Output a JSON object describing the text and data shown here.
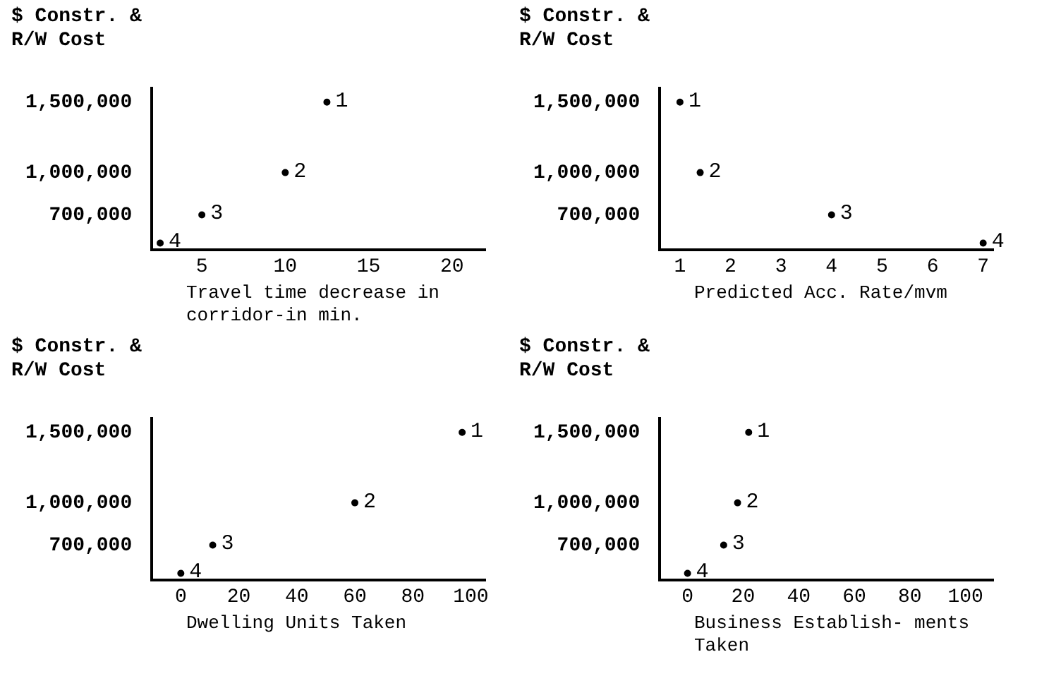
{
  "chart_data": [
    {
      "type": "scatter",
      "ylabel": "$ Constr. & R/W Cost",
      "xlabel": "Travel time decrease in corridor-in min.",
      "x": [
        12.5,
        10,
        5,
        2.5
      ],
      "values": [
        1500000,
        1000000,
        700000,
        500000
      ],
      "color": "#000000",
      "marker": "circle",
      "xlim": [
        2,
        22
      ],
      "xticks": [
        5,
        10,
        15,
        20
      ],
      "ylim": [
        450000,
        1600000
      ],
      "yticks": [
        {
          "value": 700000,
          "label": "700,000"
        },
        {
          "value": 1000000,
          "label": "1,000,000"
        },
        {
          "value": 1500000,
          "label": "1,500,000"
        }
      ],
      "grid": false,
      "legend": false,
      "annotations": [
        {
          "text": "1",
          "x": 12.5,
          "y": 1500000
        },
        {
          "text": "2",
          "x": 10,
          "y": 1000000
        },
        {
          "text": "3",
          "x": 5,
          "y": 700000
        },
        {
          "text": "4",
          "x": 2.5,
          "y": 500000
        }
      ]
    },
    {
      "type": "scatter",
      "ylabel": "$ Constr. & R/W Cost",
      "xlabel": "Predicted Acc. Rate/mvm",
      "x": [
        1,
        1.4,
        4,
        7
      ],
      "values": [
        1500000,
        1000000,
        700000,
        500000
      ],
      "color": "#000000",
      "marker": "circle",
      "xlim": [
        0.6,
        7.2
      ],
      "xticks": [
        1,
        2,
        3,
        4,
        5,
        6,
        7
      ],
      "ylim": [
        450000,
        1600000
      ],
      "yticks": [
        {
          "value": 700000,
          "label": "700,000"
        },
        {
          "value": 1000000,
          "label": "1,000,000"
        },
        {
          "value": 1500000,
          "label": "1,500,000"
        }
      ],
      "grid": false,
      "legend": false,
      "annotations": [
        {
          "text": "1",
          "x": 1,
          "y": 1500000
        },
        {
          "text": "2",
          "x": 1.4,
          "y": 1000000
        },
        {
          "text": "3",
          "x": 4,
          "y": 700000
        },
        {
          "text": "4",
          "x": 7,
          "y": 500000
        }
      ]
    },
    {
      "type": "scatter",
      "ylabel": "$ Constr. & R/W Cost",
      "xlabel": "Dwelling Units Taken",
      "x": [
        97,
        60,
        11,
        0
      ],
      "values": [
        1500000,
        1000000,
        700000,
        500000
      ],
      "color": "#000000",
      "marker": "circle",
      "xlim": [
        -10,
        105
      ],
      "xticks": [
        0,
        20,
        40,
        60,
        80,
        100
      ],
      "ylim": [
        450000,
        1600000
      ],
      "yticks": [
        {
          "value": 700000,
          "label": "700,000"
        },
        {
          "value": 1000000,
          "label": "1,000,000"
        },
        {
          "value": 1500000,
          "label": "1,500,000"
        }
      ],
      "grid": false,
      "legend": false,
      "annotations": [
        {
          "text": "1",
          "x": 97,
          "y": 1500000
        },
        {
          "text": "2",
          "x": 60,
          "y": 1000000
        },
        {
          "text": "3",
          "x": 11,
          "y": 700000
        },
        {
          "text": "4",
          "x": 0,
          "y": 500000
        }
      ]
    },
    {
      "type": "scatter",
      "ylabel": "$ Constr. & R/W Cost",
      "xlabel": "Business Establish- ments Taken",
      "x": [
        22,
        18,
        13,
        0
      ],
      "values": [
        1500000,
        1000000,
        700000,
        500000
      ],
      "color": "#000000",
      "marker": "circle",
      "xlim": [
        -10,
        110
      ],
      "xticks": [
        0,
        20,
        40,
        60,
        80,
        100
      ],
      "ylim": [
        450000,
        1600000
      ],
      "yticks": [
        {
          "value": 700000,
          "label": "700,000"
        },
        {
          "value": 1000000,
          "label": "1,000,000"
        },
        {
          "value": 1500000,
          "label": "1,500,000"
        }
      ],
      "grid": false,
      "legend": false,
      "annotations": [
        {
          "text": "1",
          "x": 22,
          "y": 1500000
        },
        {
          "text": "2",
          "x": 18,
          "y": 1000000
        },
        {
          "text": "3",
          "x": 13,
          "y": 700000
        },
        {
          "text": "4",
          "x": 0,
          "y": 500000
        }
      ]
    }
  ]
}
